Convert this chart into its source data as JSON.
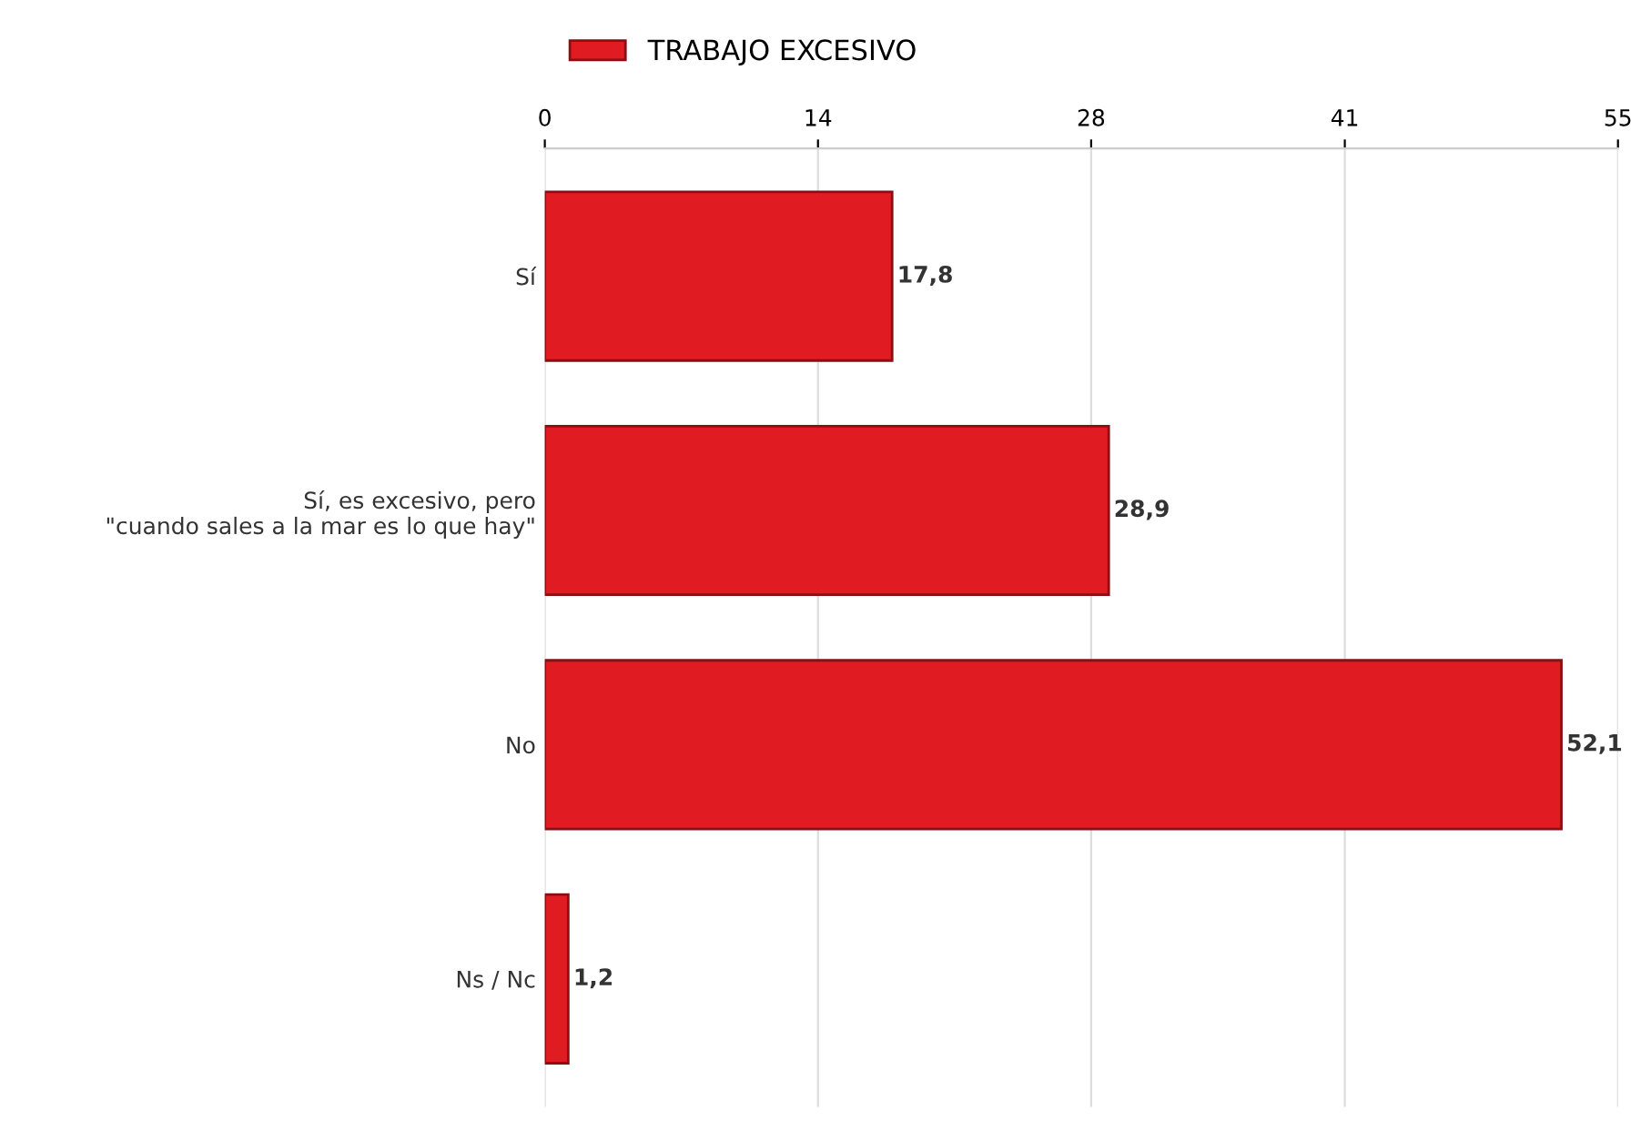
{
  "chart_data": {
    "type": "bar",
    "orientation": "horizontal",
    "categories": [
      "Sí",
      "Sí, es excesivo, pero\n\"cuando sales a la mar es lo que hay\"",
      "No",
      "Ns / Nc"
    ],
    "series": [
      {
        "name": "TRABAJO EXCESIVO",
        "color": "#e01b22",
        "values": [
          17.8,
          28.9,
          52.1,
          1.2
        ],
        "value_labels": [
          "17,8",
          "28,9",
          "52,1",
          "1,2"
        ]
      }
    ],
    "xlim": [
      0,
      55
    ],
    "xticks": [
      0,
      14,
      28,
      41,
      55
    ],
    "grid": "x",
    "legend": "top left"
  }
}
